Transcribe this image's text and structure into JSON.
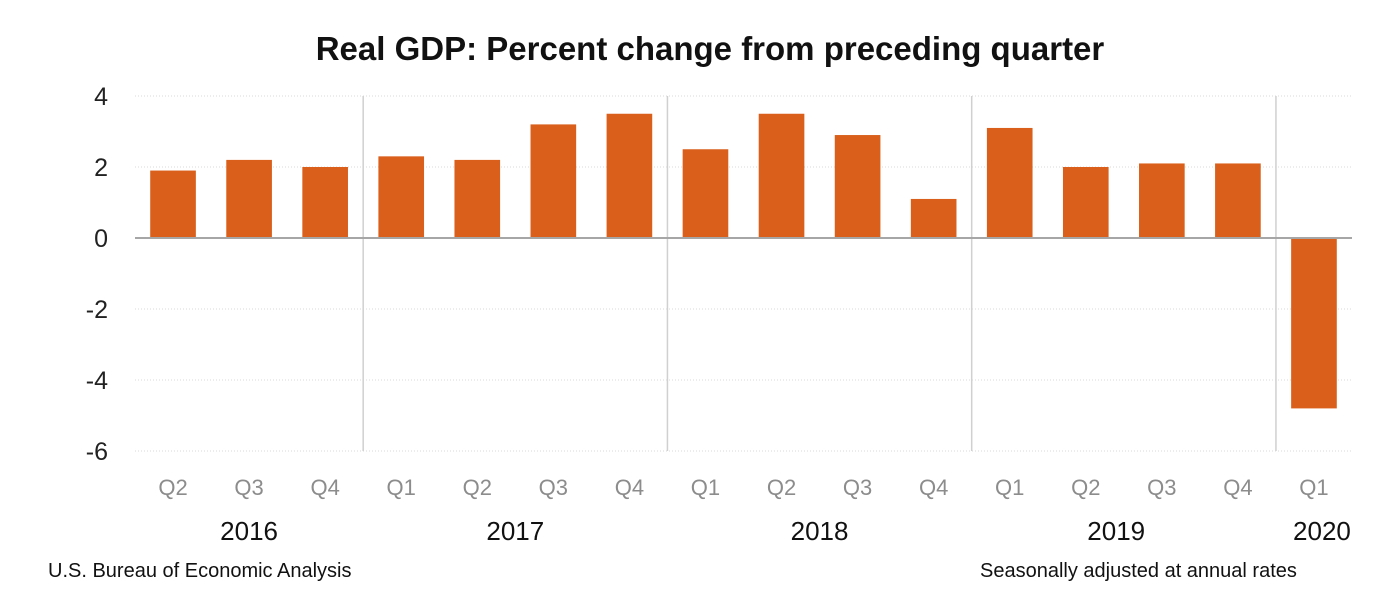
{
  "title": "Real GDP:  Percent change from preceding quarter",
  "source": "U.S. Bureau of Economic Analysis",
  "note": "Seasonally adjusted at annual rates",
  "colors": {
    "bar": "#d95f1a",
    "grid": "#d9d9d9",
    "axis": "#a6a6a6",
    "separator": "#d0d0d0"
  },
  "chart_data": {
    "type": "bar",
    "title": "Real GDP:  Percent change from preceding quarter",
    "categories": [
      "Q2",
      "Q3",
      "Q4",
      "Q1",
      "Q2",
      "Q3",
      "Q4",
      "Q1",
      "Q2",
      "Q3",
      "Q4",
      "Q1",
      "Q2",
      "Q3",
      "Q4",
      "Q1"
    ],
    "years": [
      {
        "label": "2016",
        "start": 0,
        "end": 2
      },
      {
        "label": "2017",
        "start": 3,
        "end": 6
      },
      {
        "label": "2018",
        "start": 7,
        "end": 10
      },
      {
        "label": "2019",
        "start": 11,
        "end": 14
      },
      {
        "label": "2020",
        "start": 15,
        "end": 15
      }
    ],
    "values": [
      1.9,
      2.2,
      2.0,
      2.3,
      2.2,
      3.2,
      3.5,
      2.5,
      3.5,
      2.9,
      1.1,
      3.1,
      2.0,
      2.1,
      2.1,
      -4.8
    ],
    "ylim": [
      -6,
      4
    ],
    "yticks": [
      4,
      2,
      0,
      -2,
      -4,
      -6
    ],
    "xlabel": "",
    "ylabel": "",
    "grid": true,
    "legend": "none"
  }
}
